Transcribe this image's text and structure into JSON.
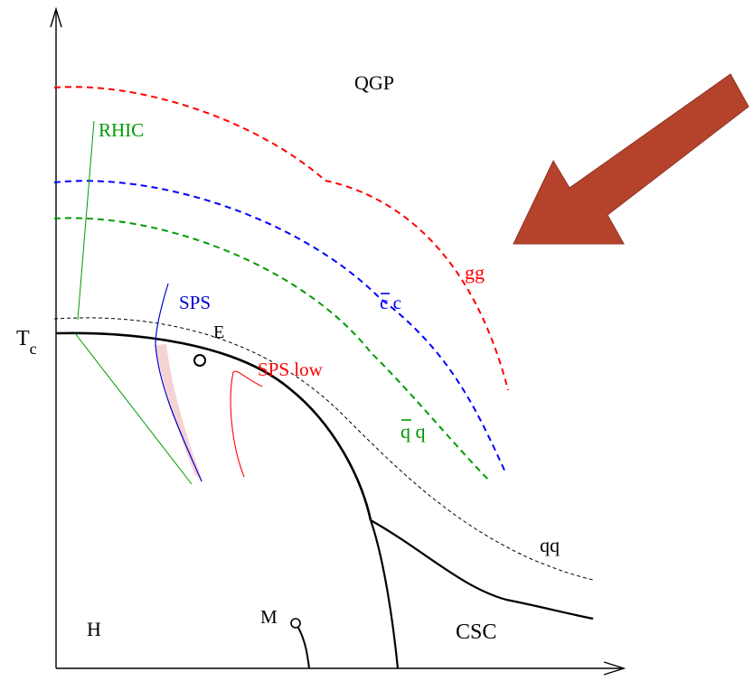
{
  "labels": {
    "qgp": "QGP",
    "rhic": "RHIC",
    "tc_main": "T",
    "tc_sub": "c",
    "sps": "SPS",
    "e": "E",
    "sps_low": "SPS low",
    "gg": "gg",
    "cbar_c": "c c",
    "qbar_q": "q q",
    "qq": "qq",
    "h": "H",
    "m": "M",
    "csc": "CSC"
  },
  "colors": {
    "axis": "#000000",
    "gg": "#ff0000",
    "ccbar": "#0000ff",
    "qqbar": "#009900",
    "rhic": "#009900",
    "sps": "#0000cc",
    "sps_low": "#ff0000",
    "arrow": "#b5432c",
    "qq_dashed": "#000000",
    "shade": "#f4c8c8"
  },
  "icons": {
    "arrow": "pointer-arrow-icon"
  }
}
